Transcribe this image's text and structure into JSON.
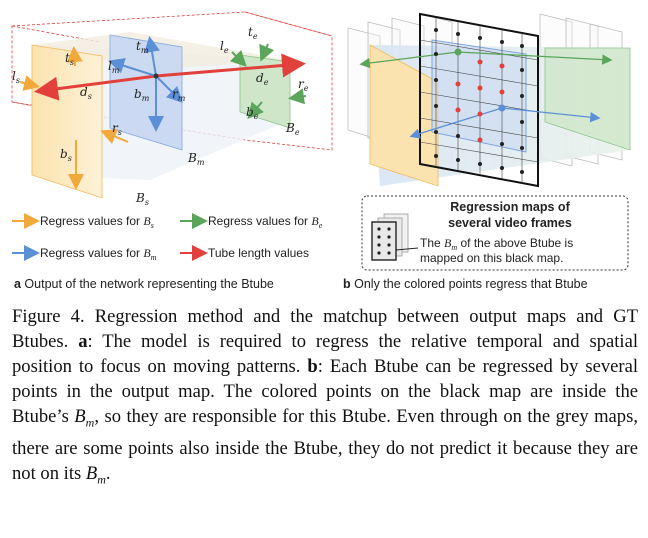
{
  "panel_a": {
    "labels": {
      "l_s": "l",
      "l_s_sub": "s",
      "t_s": "t",
      "t_s_sub": "s",
      "d_s": "d",
      "d_s_sub": "s",
      "r_s": "r",
      "r_s_sub": "s",
      "b_s": "b",
      "b_s_sub": "s",
      "B_s": "B",
      "B_s_sub": "s",
      "t_m": "t",
      "t_m_sub": "m",
      "l_m": "l",
      "l_m_sub": "m",
      "b_m": "b",
      "b_m_sub": "m",
      "r_m": "r",
      "r_m_sub": "m",
      "B_m": "B",
      "B_m_sub": "m",
      "t_e": "t",
      "t_e_sub": "e",
      "l_e": "l",
      "l_e_sub": "e",
      "d_e": "d",
      "d_e_sub": "e",
      "r_e": "r",
      "r_e_sub": "e",
      "b_e": "b",
      "b_e_sub": "e",
      "B_e": "B",
      "B_e_sub": "e"
    },
    "legend": {
      "bs_text": "Regress values for ",
      "bs_var": "B",
      "bs_sub": "s",
      "be_text": "Regress values for ",
      "be_var": "B",
      "be_sub": "e",
      "bm_text": "Regress values for ",
      "bm_var": "B",
      "bm_sub": "m",
      "tube_text": "Tube length values"
    },
    "caption_bold": "a",
    "caption_text": " Output of the network representing the Btube"
  },
  "panel_b": {
    "box_title_line1": "Regression maps of",
    "box_title_line2": "several video frames",
    "box_desc_pre": "The ",
    "box_desc_var": "B",
    "box_desc_sub": "m",
    "box_desc_post": " of the above Btube is",
    "box_desc_line2": "mapped on this black map.",
    "caption_bold": "b",
    "caption_text": " Only the colored points regress that Btube"
  },
  "colors": {
    "start": "#f2a93b",
    "start_fill": "#fbe3b0",
    "middle": "#5b8fd6",
    "middle_fill": "#c9d9f2",
    "end": "#5aa55a",
    "end_fill": "#cfe6c9",
    "tube": "#e2403a"
  },
  "caption": {
    "fig_label": "Figure 4.",
    "intro": " Regression method and the matchup between output maps and GT Btubes. ",
    "a_label": "a",
    "a_text": ": The model is required to regress the relative temporal and spatial position to focus on moving patterns. ",
    "b_label": "b",
    "b_text1": ": Each Btube can be regressed by several points in the output map. The colored points on the black map are inside the Btube’s ",
    "b_var1": "B",
    "b_sub1": "m",
    "b_text2": ", so they are responsible for this Btube. Even through on the grey maps, there are some points also inside the Btube, they do not predict it because they are not on its ",
    "b_var2": "B",
    "b_sub2": "m",
    "b_text3": "."
  }
}
